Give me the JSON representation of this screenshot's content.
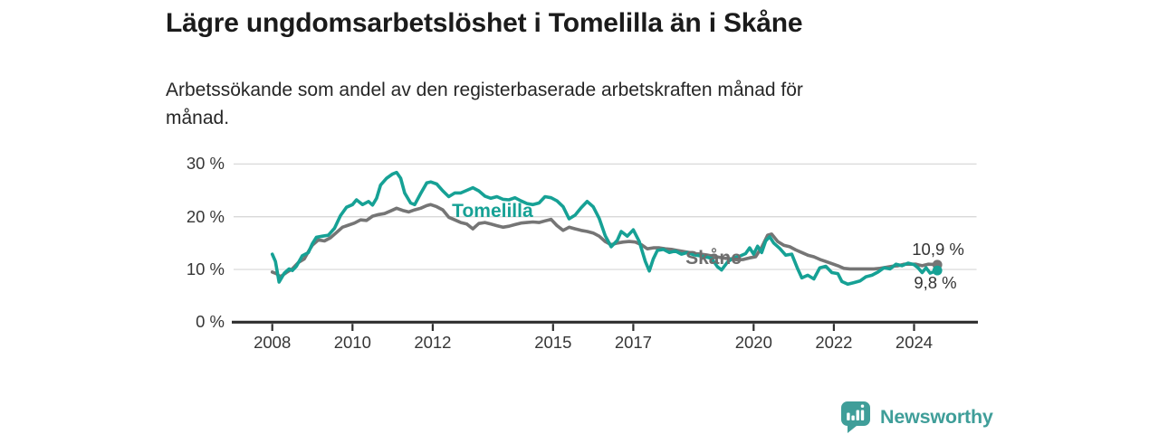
{
  "title": "Lägre ungdomsarbetslöshet i Tomelilla än i Skåne",
  "subtitle_lines": [
    "Arbetssökande som andel av den registerbaserade arbetskraften månad för",
    "månad."
  ],
  "footer": {
    "brand": "Newsworthy",
    "icon": "newsworthy-speech-bubble-bar-chart-icon",
    "brand_color": "#3f9e99"
  },
  "chart_data": {
    "type": "line",
    "title": "Lägre ungdomsarbetslöshet i Tomelilla än i Skåne",
    "xlabel": "",
    "ylabel": "",
    "unit": "%",
    "grid": true,
    "xlim": [
      2007.05,
      2025.55
    ],
    "ylim": [
      0,
      32
    ],
    "x_ticks": [
      {
        "label": "2008",
        "value": 2008
      },
      {
        "label": "2010",
        "value": 2010
      },
      {
        "label": "2012",
        "value": 2012
      },
      {
        "label": "2015",
        "value": 2015
      },
      {
        "label": "2017",
        "value": 2017
      },
      {
        "label": "2020",
        "value": 2020
      },
      {
        "label": "2022",
        "value": 2022
      },
      {
        "label": "2024",
        "value": 2024
      }
    ],
    "y_ticks": [
      {
        "label": "0 %",
        "value": 0
      },
      {
        "label": "10 %",
        "value": 10
      },
      {
        "label": "20 %",
        "value": 20
      },
      {
        "label": "30 %",
        "value": 30
      }
    ],
    "series": [
      {
        "id": "skane",
        "name": "Skåne",
        "color": "#757575",
        "end_value": 10.9,
        "end_label": "10,9 %",
        "x": [
          2008.0,
          2008.1,
          2008.2,
          2008.35,
          2008.5,
          2008.65,
          2008.8,
          2008.9,
          2009.0,
          2009.15,
          2009.3,
          2009.45,
          2009.6,
          2009.75,
          2009.9,
          2010.05,
          2010.2,
          2010.35,
          2010.5,
          2010.65,
          2010.8,
          2010.95,
          2011.1,
          2011.25,
          2011.4,
          2011.55,
          2011.7,
          2011.85,
          2011.95,
          2012.1,
          2012.25,
          2012.4,
          2012.55,
          2012.7,
          2012.85,
          2013.0,
          2013.15,
          2013.3,
          2013.45,
          2013.6,
          2013.75,
          2013.9,
          2014.05,
          2014.2,
          2014.35,
          2014.5,
          2014.65,
          2014.8,
          2014.95,
          2015.1,
          2015.25,
          2015.4,
          2015.55,
          2015.7,
          2015.85,
          2016.0,
          2016.15,
          2016.3,
          2016.45,
          2016.6,
          2016.75,
          2016.9,
          2017.05,
          2017.2,
          2017.35,
          2017.5,
          2017.65,
          2017.8,
          2017.95,
          2018.1,
          2018.25,
          2018.4,
          2018.55,
          2018.7,
          2018.85,
          2019.0,
          2019.15,
          2019.3,
          2019.45,
          2019.6,
          2019.75,
          2019.9,
          2020.05,
          2020.2,
          2020.35,
          2020.45,
          2020.6,
          2020.75,
          2020.9,
          2021.05,
          2021.2,
          2021.35,
          2021.5,
          2021.65,
          2021.8,
          2021.95,
          2022.1,
          2022.25,
          2022.4,
          2022.55,
          2022.7,
          2022.85,
          2023.0,
          2023.15,
          2023.3,
          2023.45,
          2023.6,
          2023.75,
          2023.9,
          2024.05,
          2024.2,
          2024.35,
          2024.58
        ],
        "values": [
          9.5,
          9.2,
          8.6,
          9.4,
          10.1,
          11.3,
          12.0,
          13.4,
          14.6,
          15.6,
          15.4,
          16.0,
          17.0,
          18.0,
          18.4,
          18.8,
          19.4,
          19.3,
          20.1,
          20.4,
          20.6,
          21.1,
          21.6,
          21.2,
          20.9,
          21.3,
          21.6,
          22.1,
          22.3,
          21.9,
          21.3,
          19.9,
          19.4,
          18.9,
          18.6,
          17.7,
          18.7,
          18.9,
          18.6,
          18.3,
          18.0,
          18.2,
          18.5,
          18.8,
          18.9,
          19.0,
          18.9,
          19.2,
          19.5,
          18.3,
          17.4,
          18.0,
          17.7,
          17.4,
          17.2,
          16.9,
          16.3,
          15.3,
          14.7,
          15.0,
          15.2,
          15.3,
          15.2,
          14.7,
          13.9,
          14.1,
          14.1,
          13.9,
          13.8,
          13.6,
          13.4,
          13.2,
          13.0,
          12.9,
          12.7,
          12.5,
          12.3,
          12.1,
          12.0,
          11.8,
          11.9,
          12.2,
          12.4,
          14.2,
          16.5,
          16.7,
          15.3,
          14.6,
          14.3,
          13.7,
          13.2,
          12.7,
          12.4,
          11.9,
          11.5,
          11.1,
          10.7,
          10.2,
          10.1,
          10.1,
          10.1,
          10.1,
          10.1,
          10.2,
          10.4,
          10.6,
          10.7,
          11.0,
          11.0,
          11.0,
          10.7,
          11.0,
          10.9
        ]
      },
      {
        "id": "tomelilla",
        "name": "Tomelilla",
        "color": "#16a195",
        "end_value": 9.8,
        "end_label": "9,8 %",
        "x": [
          2008.0,
          2008.08,
          2008.17,
          2008.3,
          2008.42,
          2008.5,
          2008.6,
          2008.75,
          2008.9,
          2009.0,
          2009.1,
          2009.25,
          2009.4,
          2009.55,
          2009.7,
          2009.85,
          2010.0,
          2010.1,
          2010.25,
          2010.4,
          2010.5,
          2010.6,
          2010.7,
          2010.85,
          2011.0,
          2011.1,
          2011.2,
          2011.3,
          2011.45,
          2011.55,
          2011.7,
          2011.85,
          2011.95,
          2012.1,
          2012.25,
          2012.4,
          2012.55,
          2012.7,
          2012.85,
          2013.0,
          2013.15,
          2013.3,
          2013.45,
          2013.6,
          2013.75,
          2013.9,
          2014.05,
          2014.2,
          2014.35,
          2014.5,
          2014.65,
          2014.8,
          2014.95,
          2015.1,
          2015.25,
          2015.4,
          2015.55,
          2015.7,
          2015.85,
          2016.0,
          2016.15,
          2016.3,
          2016.45,
          2016.6,
          2016.7,
          2016.85,
          2017.0,
          2017.15,
          2017.3,
          2017.4,
          2017.5,
          2017.6,
          2017.75,
          2017.9,
          2018.05,
          2018.2,
          2018.35,
          2018.5,
          2018.65,
          2018.8,
          2018.95,
          2019.1,
          2019.2,
          2019.35,
          2019.5,
          2019.65,
          2019.8,
          2019.9,
          2020.0,
          2020.1,
          2020.2,
          2020.3,
          2020.4,
          2020.5,
          2020.65,
          2020.8,
          2020.95,
          2021.1,
          2021.2,
          2021.35,
          2021.5,
          2021.65,
          2021.8,
          2021.95,
          2022.1,
          2022.2,
          2022.35,
          2022.5,
          2022.65,
          2022.8,
          2022.95,
          2023.1,
          2023.25,
          2023.4,
          2023.55,
          2023.7,
          2023.85,
          2024.0,
          2024.1,
          2024.2,
          2024.3,
          2024.4,
          2024.58
        ],
        "values": [
          12.9,
          11.5,
          7.6,
          9.3,
          10.1,
          9.8,
          10.6,
          12.6,
          13.2,
          14.9,
          16.1,
          16.3,
          16.5,
          17.8,
          20.2,
          21.8,
          22.3,
          23.2,
          22.3,
          22.9,
          22.2,
          23.5,
          26.0,
          27.3,
          28.1,
          28.4,
          27.3,
          24.5,
          22.6,
          22.3,
          24.4,
          26.4,
          26.6,
          26.2,
          24.9,
          23.8,
          24.5,
          24.5,
          25.0,
          25.5,
          24.9,
          23.9,
          23.5,
          23.8,
          23.3,
          23.2,
          23.6,
          23.0,
          22.5,
          22.3,
          22.6,
          23.8,
          23.6,
          23.0,
          21.9,
          19.6,
          20.3,
          21.7,
          22.9,
          21.9,
          19.7,
          16.4,
          14.3,
          15.5,
          17.2,
          16.3,
          17.5,
          15.3,
          11.5,
          9.7,
          12.0,
          13.6,
          13.8,
          13.2,
          13.5,
          12.9,
          13.2,
          12.8,
          12.6,
          12.4,
          12.1,
          10.5,
          9.9,
          11.4,
          12.2,
          12.5,
          13.0,
          14.1,
          12.9,
          14.4,
          13.2,
          15.4,
          16.2,
          15.0,
          14.0,
          12.7,
          12.9,
          10.1,
          8.4,
          8.9,
          8.2,
          10.3,
          10.6,
          9.4,
          9.2,
          7.7,
          7.2,
          7.5,
          7.8,
          8.6,
          8.9,
          9.5,
          10.3,
          10.1,
          11.0,
          10.7,
          11.2,
          10.9,
          10.3,
          9.4,
          10.3,
          9.3,
          9.8
        ]
      }
    ],
    "labels": [
      {
        "id": "series-label-tomelilla",
        "kind": "series",
        "text": "Tomelilla",
        "x": 2013.49,
        "y": 20.9,
        "color": "#16a195"
      },
      {
        "id": "series-label-skane",
        "kind": "series",
        "text": "Skåne",
        "x": 2019.0,
        "y": 12.0,
        "color": "#6e6e6e"
      },
      {
        "id": "end-value-label-skane",
        "kind": "value",
        "text": "10,9 %",
        "x": 2024.6,
        "y": 13.7,
        "color": "#333333"
      },
      {
        "id": "end-value-label-tomelilla",
        "kind": "value",
        "text": "9,8 %",
        "x": 2024.53,
        "y": 7.5,
        "color": "#333333"
      }
    ],
    "legend_position": "inline-labels"
  }
}
